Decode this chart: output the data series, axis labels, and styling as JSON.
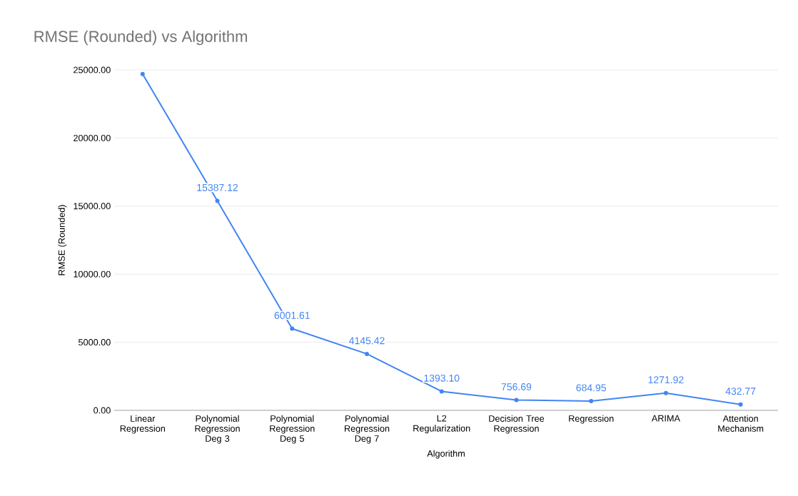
{
  "chart_data": {
    "type": "line",
    "title": "RMSE (Rounded) vs Algorithm",
    "xlabel": "Algorithm",
    "ylabel": "RMSE (Rounded)",
    "categories": [
      "Linear Regression",
      "Polynomial Regression Deg 3",
      "Polynomial Regression Deg 5",
      "Polynomial Regression Deg 7",
      "L2 Regularization",
      "Decision Tree Regression",
      "Regression",
      "ARIMA",
      "Attention Mechanism"
    ],
    "values": [
      24700,
      15387.12,
      6001.61,
      4145.42,
      1393.1,
      756.69,
      684.95,
      1271.92,
      432.77
    ],
    "value_labels": [
      null,
      "15387.12",
      "6001.61",
      "4145.42",
      "1393.10",
      "756.69",
      "684.95",
      "1271.92",
      "432.77"
    ],
    "color": "#4285f4",
    "ylim": [
      0,
      25000
    ],
    "yticks": [
      {
        "value": 0,
        "label": "0.00"
      },
      {
        "value": 5000,
        "label": "5000.00"
      },
      {
        "value": 10000,
        "label": "10000.00"
      },
      {
        "value": 15000,
        "label": "15000.00"
      },
      {
        "value": 20000,
        "label": "20000.00"
      },
      {
        "value": 25000,
        "label": "25000.00"
      }
    ],
    "grid": "y",
    "marker": "circle",
    "line_style": "solid"
  }
}
